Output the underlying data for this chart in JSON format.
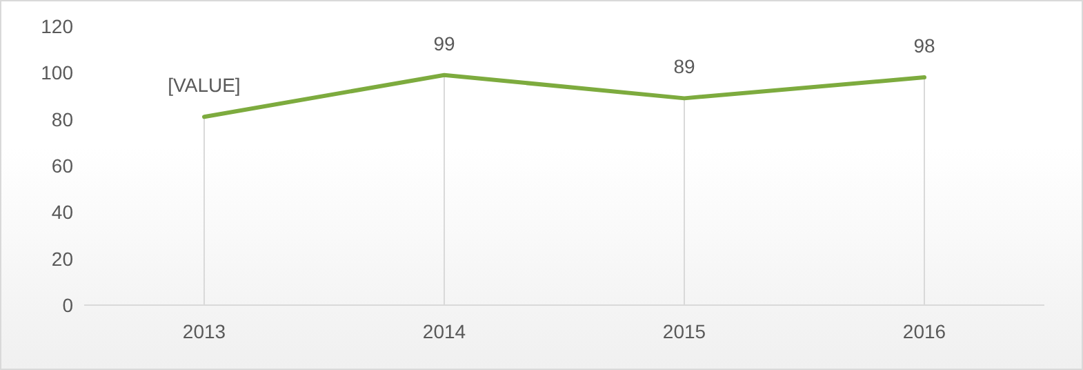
{
  "chart_data": {
    "type": "line",
    "categories": [
      "2013",
      "2014",
      "2015",
      "2016"
    ],
    "series": [
      {
        "color": "#7dab3e",
        "values": [
          81,
          99,
          89,
          98
        ],
        "value_labels": [
          "[VALUE]",
          "99",
          "89",
          "98"
        ]
      }
    ],
    "ylim": [
      0,
      120
    ],
    "yticks": [
      0,
      20,
      40,
      60,
      80,
      100,
      120
    ],
    "grid": "x",
    "marker": "none",
    "line_style": "solid"
  }
}
